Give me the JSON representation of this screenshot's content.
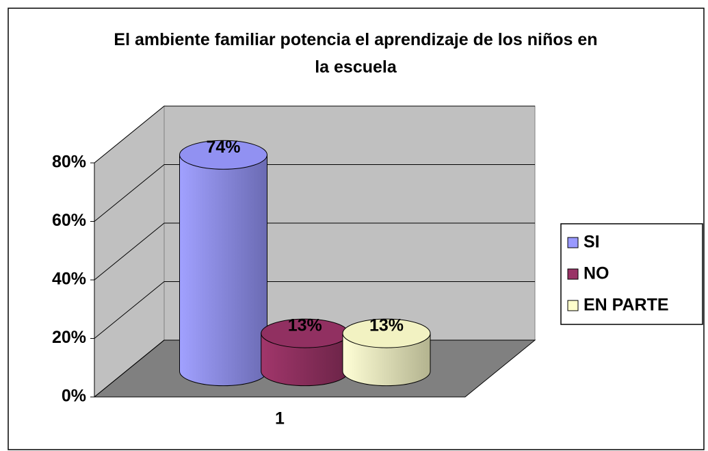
{
  "chart_data": {
    "type": "bar3d",
    "title": "El ambiente familiar potencia el aprendizaje de los niños en la escuela",
    "categories": [
      "1"
    ],
    "series": [
      {
        "name": "SI",
        "color": "#9999ff",
        "values": [
          74
        ],
        "value_labels": [
          "74%"
        ]
      },
      {
        "name": "NO",
        "color": "#993366",
        "values": [
          13
        ],
        "value_labels": [
          "13%"
        ]
      },
      {
        "name": "EN PARTE",
        "color": "#ffffcc",
        "values": [
          13
        ],
        "value_labels": [
          "13%"
        ]
      }
    ],
    "ylim": [
      0,
      80
    ],
    "yticks": [
      {
        "value": 0,
        "label": "0%"
      },
      {
        "value": 20,
        "label": "20%"
      },
      {
        "value": 40,
        "label": "40%"
      },
      {
        "value": 60,
        "label": "60%"
      },
      {
        "value": 80,
        "label": "80%"
      }
    ],
    "grid": true,
    "legend": "right"
  }
}
